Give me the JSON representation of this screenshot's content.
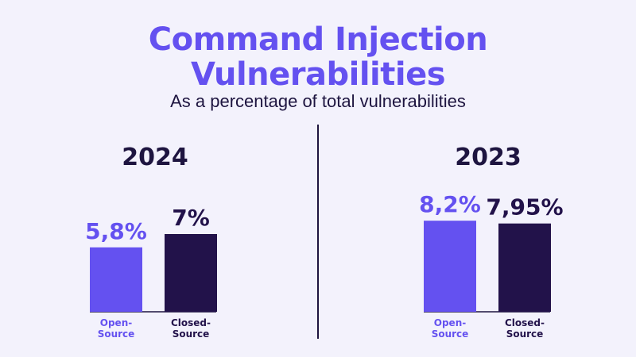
{
  "header": {
    "title_line1": "Command Injection",
    "title_line2": "Vulnerabilities",
    "subtitle": "As a percentage of total vulnerabilities"
  },
  "colors": {
    "open_source": "#6451f0",
    "closed_source": "#22124a",
    "text_dark": "#1e1540",
    "background": "#f3f2fc"
  },
  "chart_data": [
    {
      "type": "bar",
      "title": "2024",
      "categories": [
        "Open-Source",
        "Closed-Source"
      ],
      "category_lines": [
        [
          "Open-",
          "Source"
        ],
        [
          "Closed-",
          "Source"
        ]
      ],
      "values": [
        5.8,
        7.0
      ],
      "value_labels": [
        "5,8%",
        "7%"
      ],
      "ylim": [
        0,
        11
      ]
    },
    {
      "type": "bar",
      "title": "2023",
      "categories": [
        "Open-Source",
        "Closed-Source"
      ],
      "category_lines": [
        [
          "Open-",
          "Source"
        ],
        [
          "Closed-",
          "Source"
        ]
      ],
      "values": [
        8.2,
        7.95
      ],
      "value_labels": [
        "8,2%",
        "7,95%"
      ],
      "ylim": [
        0,
        11
      ]
    }
  ]
}
